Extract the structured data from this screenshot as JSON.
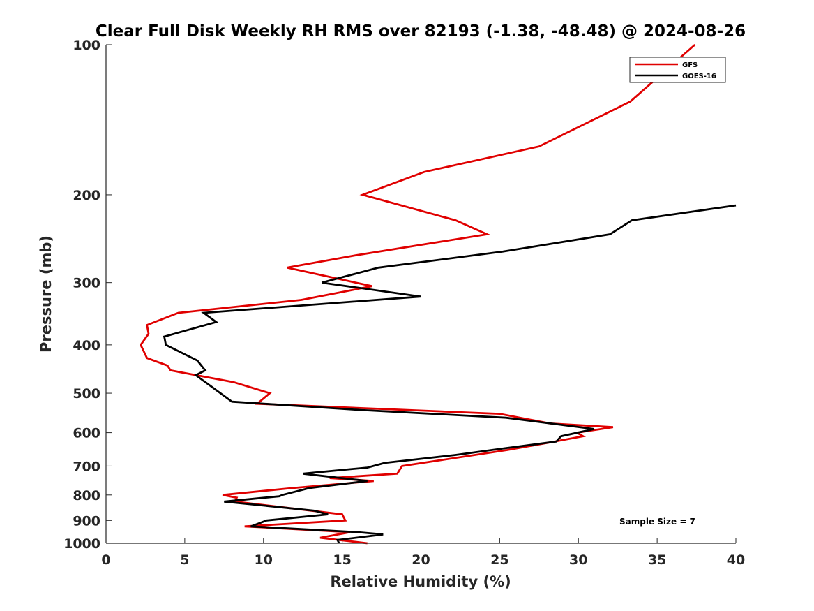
{
  "chart_data": {
    "type": "line",
    "title": "Clear Full Disk Weekly RH RMS over 82193 (-1.38, -48.48) @ 2024-08-26",
    "xlabel": "Relative Humidity (%)",
    "ylabel": "Pressure (mb)",
    "xlim": [
      0,
      40
    ],
    "ylim": [
      1000,
      100
    ],
    "y_scale": "log",
    "y_reversed": true,
    "xticks": [
      0,
      5,
      10,
      15,
      20,
      25,
      30,
      35,
      40
    ],
    "yticks": [
      100,
      200,
      300,
      400,
      500,
      600,
      700,
      800,
      900,
      1000
    ],
    "grid": false,
    "legend_position": "top-right",
    "annotation": "Sample Size = 7",
    "series": [
      {
        "name": "GFS",
        "color": "#e00000",
        "points": [
          [
            16.6,
            1000
          ],
          [
            13.6,
            975
          ],
          [
            15.5,
            950
          ],
          [
            8.8,
            925
          ],
          [
            15.2,
            900
          ],
          [
            15.0,
            875
          ],
          [
            8.2,
            825
          ],
          [
            8.3,
            810
          ],
          [
            7.4,
            800
          ],
          [
            11.8,
            775
          ],
          [
            17.0,
            750
          ],
          [
            14.2,
            740
          ],
          [
            18.5,
            725
          ],
          [
            18.8,
            700
          ],
          [
            25.5,
            650
          ],
          [
            28.5,
            625
          ],
          [
            30.3,
            610
          ],
          [
            29.9,
            600
          ],
          [
            32.2,
            585
          ],
          [
            28.2,
            575
          ],
          [
            25.0,
            550
          ],
          [
            9.6,
            525
          ],
          [
            10.4,
            500
          ],
          [
            8.1,
            475
          ],
          [
            4.1,
            450
          ],
          [
            3.9,
            440
          ],
          [
            2.6,
            425
          ],
          [
            2.2,
            400
          ],
          [
            2.7,
            380
          ],
          [
            2.6,
            365
          ],
          [
            4.6,
            345
          ],
          [
            12.4,
            325
          ],
          [
            16.9,
            305
          ],
          [
            11.5,
            280
          ],
          [
            15.7,
            265
          ],
          [
            24.2,
            240
          ],
          [
            22.2,
            225
          ],
          [
            16.3,
            200
          ],
          [
            20.2,
            180
          ],
          [
            27.5,
            160
          ],
          [
            33.3,
            130
          ],
          [
            37.4,
            100
          ]
        ]
      },
      {
        "name": "GOES-16",
        "color": "#000000",
        "points": [
          [
            14.8,
            1000
          ],
          [
            14.7,
            985
          ],
          [
            17.6,
            960
          ],
          [
            16.0,
            950
          ],
          [
            9.2,
            925
          ],
          [
            10.2,
            900
          ],
          [
            14.1,
            875
          ],
          [
            13.2,
            860
          ],
          [
            7.5,
            825
          ],
          [
            11.0,
            805
          ],
          [
            11.2,
            800
          ],
          [
            12.9,
            775
          ],
          [
            16.6,
            750
          ],
          [
            12.5,
            725
          ],
          [
            16.6,
            705
          ],
          [
            17.7,
            690
          ],
          [
            22.2,
            665
          ],
          [
            25.3,
            645
          ],
          [
            28.6,
            625
          ],
          [
            28.9,
            610
          ],
          [
            31.0,
            590
          ],
          [
            25.4,
            560
          ],
          [
            16.0,
            540
          ],
          [
            8.0,
            520
          ],
          [
            6.5,
            480
          ],
          [
            5.7,
            460
          ],
          [
            6.3,
            450
          ],
          [
            5.8,
            430
          ],
          [
            3.8,
            400
          ],
          [
            3.7,
            385
          ],
          [
            7.0,
            360
          ],
          [
            6.2,
            345
          ],
          [
            20.0,
            320
          ],
          [
            13.7,
            300
          ],
          [
            17.3,
            280
          ],
          [
            25.2,
            260
          ],
          [
            32.0,
            240
          ],
          [
            33.4,
            225
          ],
          [
            40.0,
            210
          ]
        ]
      }
    ]
  }
}
